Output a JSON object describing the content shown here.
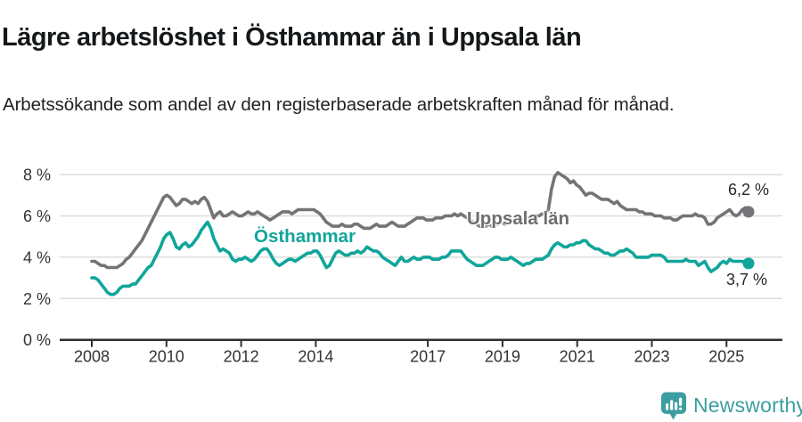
{
  "header": {
    "title": "Lägre arbetslöshet i Östhammar än i Uppsala län",
    "subtitle": "Arbetssökande som andel av den registerbaserade arbetskraften månad för månad."
  },
  "chart_data": {
    "type": "line",
    "x_start": "2008-01",
    "x_end": "2025-07",
    "x_frequency": "monthly",
    "unit": "%",
    "ylim": [
      0,
      8.3
    ],
    "grid": "horizontal",
    "legend_position": "inline-labels",
    "y_ticks": [
      {
        "v": 0,
        "label": "0 %"
      },
      {
        "v": 2,
        "label": "2 %"
      },
      {
        "v": 4,
        "label": "4 %"
      },
      {
        "v": 6,
        "label": "6 %"
      },
      {
        "v": 8,
        "label": "8 %"
      }
    ],
    "x_ticks": [
      {
        "year": 2008,
        "label": "2008"
      },
      {
        "year": 2010,
        "label": "2010"
      },
      {
        "year": 2012,
        "label": "2012"
      },
      {
        "year": 2014,
        "label": "2014"
      },
      {
        "year": 2017,
        "label": "2017"
      },
      {
        "year": 2019,
        "label": "2019"
      },
      {
        "year": 2021,
        "label": "2021"
      },
      {
        "year": 2023,
        "label": "2023"
      },
      {
        "year": 2025,
        "label": "2025"
      }
    ],
    "series": [
      {
        "name": "Uppsala län",
        "color": "#747478",
        "end_label": "6,2 %",
        "end_value": 6.2,
        "values": [
          3.8,
          3.8,
          3.7,
          3.6,
          3.6,
          3.5,
          3.5,
          3.5,
          3.5,
          3.6,
          3.7,
          3.9,
          4.0,
          4.2,
          4.4,
          4.6,
          4.8,
          5.1,
          5.4,
          5.7,
          6.0,
          6.3,
          6.6,
          6.9,
          7.0,
          6.9,
          6.7,
          6.5,
          6.6,
          6.8,
          6.8,
          6.7,
          6.6,
          6.7,
          6.6,
          6.8,
          6.9,
          6.7,
          6.3,
          5.9,
          6.1,
          6.2,
          6.0,
          6.0,
          6.1,
          6.2,
          6.1,
          6.0,
          6.0,
          6.1,
          6.2,
          6.1,
          6.1,
          6.2,
          6.1,
          6.0,
          5.9,
          5.8,
          5.9,
          6.0,
          6.1,
          6.2,
          6.2,
          6.2,
          6.1,
          6.2,
          6.3,
          6.3,
          6.3,
          6.3,
          6.3,
          6.3,
          6.2,
          6.1,
          5.9,
          5.7,
          5.6,
          5.5,
          5.5,
          5.5,
          5.6,
          5.5,
          5.5,
          5.5,
          5.6,
          5.6,
          5.5,
          5.4,
          5.4,
          5.4,
          5.5,
          5.6,
          5.5,
          5.5,
          5.5,
          5.6,
          5.7,
          5.6,
          5.5,
          5.5,
          5.5,
          5.6,
          5.7,
          5.8,
          5.9,
          5.9,
          5.9,
          5.8,
          5.8,
          5.8,
          5.9,
          5.9,
          5.9,
          6.0,
          6.0,
          6.0,
          6.1,
          6.0,
          6.1,
          6.0,
          5.9,
          5.8,
          5.7,
          5.6,
          5.5,
          5.5,
          5.5,
          5.6,
          5.5,
          5.6,
          5.6,
          5.7,
          5.6,
          5.7,
          5.7,
          5.8,
          5.7,
          5.8,
          5.8,
          5.9,
          5.9,
          6.0,
          6.0,
          6.0,
          6.1,
          6.1,
          6.3,
          7.3,
          7.9,
          8.1,
          8.0,
          7.9,
          7.8,
          7.6,
          7.7,
          7.5,
          7.4,
          7.2,
          7.0,
          7.1,
          7.1,
          7.0,
          6.9,
          6.8,
          6.8,
          6.8,
          6.7,
          6.6,
          6.7,
          6.5,
          6.4,
          6.3,
          6.3,
          6.3,
          6.3,
          6.2,
          6.2,
          6.1,
          6.1,
          6.1,
          6.0,
          6.0,
          6.0,
          5.9,
          5.9,
          5.9,
          5.8,
          5.8,
          5.9,
          6.0,
          6.0,
          6.0,
          6.0,
          6.1,
          6.0,
          6.0,
          5.9,
          5.6,
          5.6,
          5.7,
          5.9,
          6.0,
          6.1,
          6.2,
          6.3,
          6.1,
          6.0,
          6.1,
          6.3,
          6.4,
          6.2
        ]
      },
      {
        "name": "Östhammar",
        "color": "#10a59a",
        "end_label": "3,7 %",
        "end_value": 3.7,
        "values": [
          3.0,
          3.0,
          2.9,
          2.7,
          2.5,
          2.3,
          2.2,
          2.2,
          2.3,
          2.5,
          2.6,
          2.6,
          2.6,
          2.7,
          2.7,
          2.9,
          3.1,
          3.3,
          3.5,
          3.6,
          3.9,
          4.2,
          4.5,
          4.9,
          5.1,
          5.2,
          4.9,
          4.5,
          4.4,
          4.6,
          4.7,
          4.5,
          4.6,
          4.8,
          5.0,
          5.3,
          5.5,
          5.7,
          5.4,
          4.9,
          4.6,
          4.3,
          4.4,
          4.3,
          4.2,
          3.9,
          3.8,
          3.9,
          3.9,
          4.0,
          3.9,
          3.8,
          3.9,
          4.1,
          4.3,
          4.4,
          4.4,
          4.2,
          3.9,
          3.7,
          3.6,
          3.7,
          3.8,
          3.9,
          3.9,
          3.8,
          3.9,
          4.0,
          4.1,
          4.2,
          4.2,
          4.3,
          4.3,
          4.1,
          3.8,
          3.5,
          3.6,
          3.9,
          4.2,
          4.3,
          4.2,
          4.1,
          4.1,
          4.2,
          4.2,
          4.3,
          4.2,
          4.3,
          4.5,
          4.4,
          4.3,
          4.3,
          4.2,
          4.0,
          3.9,
          3.8,
          3.7,
          3.6,
          3.8,
          4.0,
          3.8,
          3.8,
          3.9,
          4.0,
          3.9,
          3.9,
          4.0,
          4.0,
          4.0,
          3.9,
          3.9,
          3.9,
          4.0,
          4.0,
          4.1,
          4.3,
          4.3,
          4.3,
          4.3,
          4.1,
          3.9,
          3.8,
          3.7,
          3.6,
          3.6,
          3.6,
          3.7,
          3.8,
          3.9,
          4.0,
          4.0,
          3.9,
          3.9,
          3.9,
          4.0,
          3.9,
          3.8,
          3.7,
          3.6,
          3.7,
          3.7,
          3.8,
          3.9,
          3.9,
          3.9,
          4.0,
          4.1,
          4.4,
          4.6,
          4.7,
          4.6,
          4.5,
          4.5,
          4.6,
          4.6,
          4.7,
          4.7,
          4.8,
          4.8,
          4.6,
          4.5,
          4.4,
          4.4,
          4.3,
          4.2,
          4.2,
          4.1,
          4.1,
          4.2,
          4.3,
          4.3,
          4.4,
          4.3,
          4.2,
          4.0,
          4.0,
          4.0,
          4.0,
          4.0,
          4.1,
          4.1,
          4.1,
          4.1,
          4.0,
          3.8,
          3.8,
          3.8,
          3.8,
          3.8,
          3.8,
          3.9,
          3.8,
          3.8,
          3.8,
          3.6,
          3.7,
          3.8,
          3.5,
          3.3,
          3.4,
          3.5,
          3.7,
          3.8,
          3.7,
          3.9,
          3.8,
          3.8,
          3.8,
          3.8,
          3.7,
          3.7
        ]
      }
    ]
  },
  "footer": {
    "brand": "Newsworthy"
  },
  "icons": {
    "logo": "chart-speech-bubble-icon"
  },
  "colors": {
    "uppsala_line": "#747478",
    "osthammar_line": "#10a59a",
    "logo_teal": "#3b9ea0",
    "gridline": "#dcdcdc",
    "axis": "#2f2f2f",
    "text_dark": "#15181a"
  }
}
